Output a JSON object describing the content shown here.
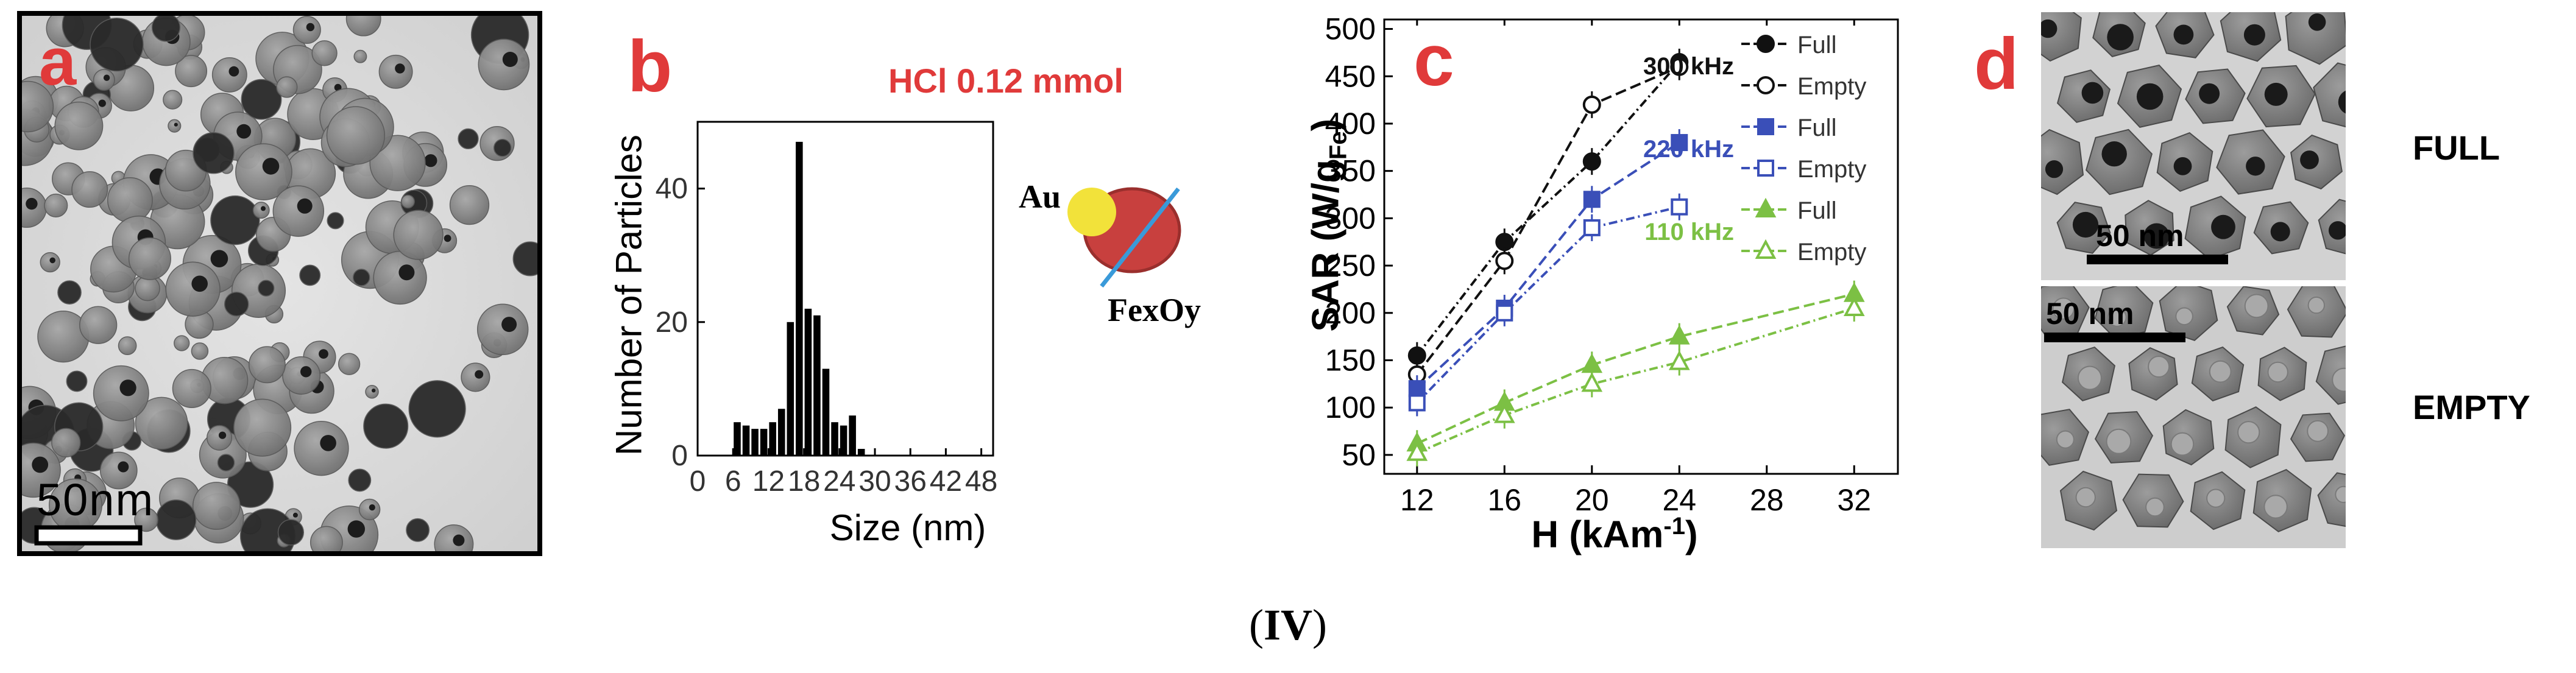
{
  "figure": {
    "caption_open": "(",
    "caption_bold": "IV",
    "caption_close": ")",
    "accent_color": "#e03a3a"
  },
  "panel_a": {
    "letter": "a",
    "scale_bar": "50nm",
    "description_colors": {
      "background": "#d9d9d9",
      "particle": "#8a8a8a",
      "core": "#202020"
    }
  },
  "panel_b": {
    "letter": "b",
    "annotation": "HCl 0.12 mmol",
    "inset_label_au": "Au",
    "inset_label_fe": "FexOy",
    "colors": {
      "au": "#f2e23a",
      "fe": "#c8403e",
      "line": "#3a9ad9",
      "bars": "#000000"
    }
  },
  "panel_c": {
    "letter": "c"
  },
  "panel_d": {
    "letter": "d",
    "top_scale_bar": "50 nm",
    "bottom_scale_bar": "50 nm",
    "top_label": "FULL",
    "bottom_label": "EMPTY"
  },
  "chart_data": [
    {
      "type": "bar",
      "title": "",
      "xlabel": "Size (nm)",
      "ylabel": "Number of Particles",
      "xlim": [
        0,
        50
      ],
      "ylim": [
        0,
        50
      ],
      "xticks": [
        "0",
        "6",
        "12",
        "18",
        "24",
        "30",
        "36",
        "42",
        "48"
      ],
      "yticks": [
        "0",
        "20",
        "40"
      ],
      "bin_width": 1.5,
      "bins_start": [
        6,
        7.5,
        9,
        10.5,
        12,
        13.5,
        15,
        16.5,
        18,
        19.5,
        21,
        22.5,
        24,
        25.5,
        27
      ],
      "values": [
        5,
        4.5,
        4,
        4,
        5,
        7,
        20,
        47,
        22,
        21,
        13,
        5,
        4.5,
        6,
        1
      ]
    },
    {
      "type": "line",
      "title": "",
      "xlabel": "H (kAm",
      "xlabel_sup": "-1",
      "xlabel_close": ")",
      "ylabel": "SAR (W/g",
      "ylabel_sub": "Fe",
      "ylabel_close": ")",
      "xlim": [
        10.5,
        34
      ],
      "ylim": [
        30,
        510
      ],
      "xticks": [
        "12",
        "16",
        "20",
        "24",
        "28",
        "32"
      ],
      "yticks": [
        "50",
        "100",
        "150",
        "200",
        "250",
        "300",
        "350",
        "400",
        "450",
        "500"
      ],
      "legend_groups": [
        "300 kHz",
        "220 kHz",
        "110 kHz"
      ],
      "series": [
        {
          "name": "Full",
          "group": "300 kHz",
          "color": "#111111",
          "marker": "circle",
          "filled": true,
          "dash": "14,6,3,6",
          "x": [
            12,
            16,
            20,
            24
          ],
          "y": [
            155,
            275,
            360,
            465
          ]
        },
        {
          "name": "Empty",
          "group": "300 kHz",
          "color": "#111111",
          "marker": "circle",
          "filled": false,
          "dash": "18,8",
          "x": [
            12,
            16,
            20,
            24
          ],
          "y": [
            135,
            255,
            420,
            460
          ]
        },
        {
          "name": "Full",
          "group": "220 kHz",
          "color": "#3a4fb8",
          "marker": "square",
          "filled": true,
          "dash": "18,8",
          "x": [
            12,
            16,
            20,
            24
          ],
          "y": [
            120,
            205,
            320,
            380
          ]
        },
        {
          "name": "Empty",
          "group": "220 kHz",
          "color": "#3a4fb8",
          "marker": "square",
          "filled": false,
          "dash": "14,6,3,6",
          "x": [
            12,
            16,
            20,
            24
          ],
          "y": [
            105,
            200,
            290,
            312
          ]
        },
        {
          "name": "Full",
          "group": "110 kHz",
          "color": "#7cc044",
          "marker": "triangle",
          "filled": true,
          "dash": "18,8",
          "x": [
            12,
            16,
            20,
            24,
            32
          ],
          "y": [
            62,
            105,
            145,
            175,
            220
          ]
        },
        {
          "name": "Empty",
          "group": "110 kHz",
          "color": "#7cc044",
          "marker": "triangle",
          "filled": false,
          "dash": "14,6,3,6",
          "x": [
            12,
            16,
            20,
            24,
            32
          ],
          "y": [
            52,
            92,
            125,
            148,
            205
          ]
        }
      ]
    }
  ]
}
